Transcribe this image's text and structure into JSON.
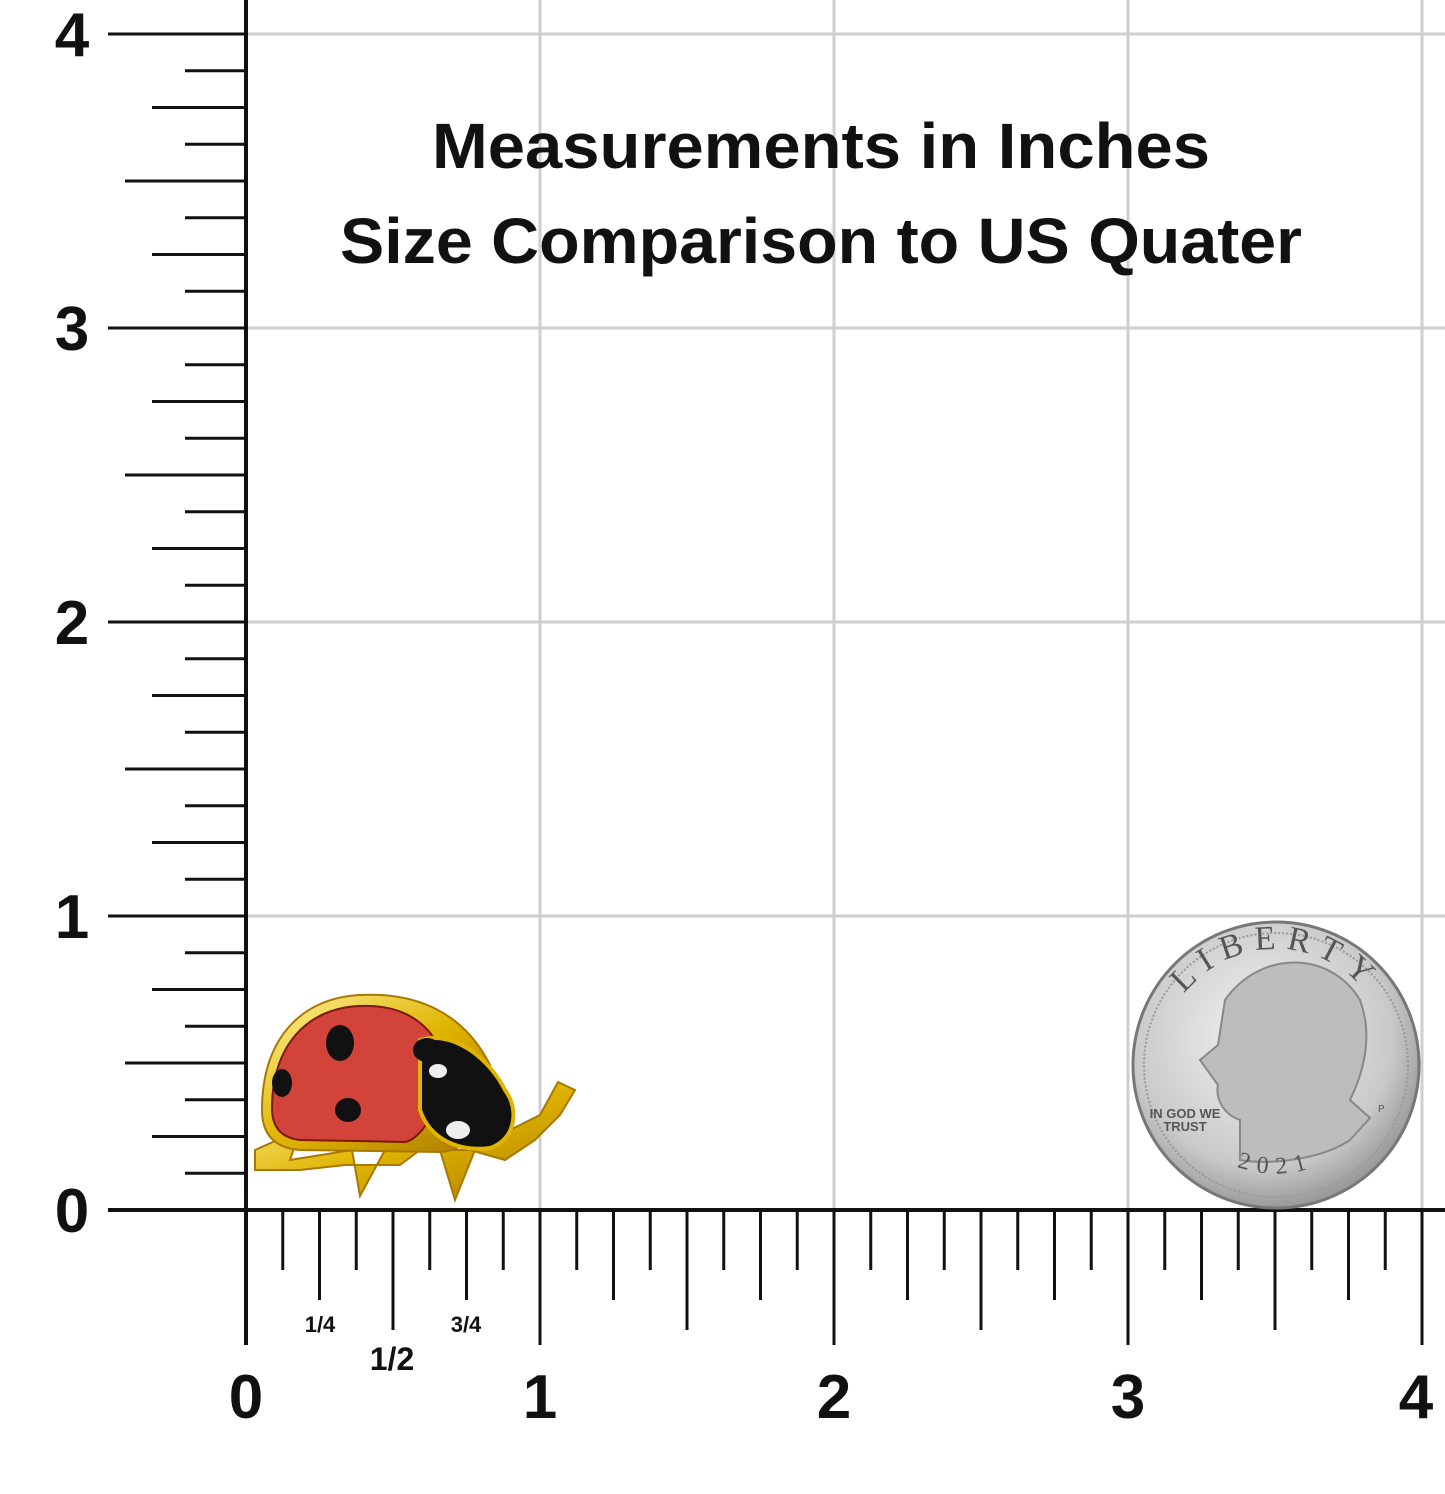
{
  "header": {
    "title_lines": [
      "Measurements in Inches",
      "Size Comparison to US Quater"
    ]
  },
  "ruler": {
    "y_labels": [
      "0",
      "1",
      "2",
      "3",
      "4"
    ],
    "x_labels": [
      "0",
      "1",
      "2",
      "3",
      "4"
    ],
    "fractions": [
      "1/4",
      "1/2",
      "3/4"
    ]
  },
  "coin": {
    "motto": "LIBERTY",
    "trust": [
      "IN GOD WE",
      "TRUST"
    ],
    "year": "2021",
    "mint": "P"
  }
}
